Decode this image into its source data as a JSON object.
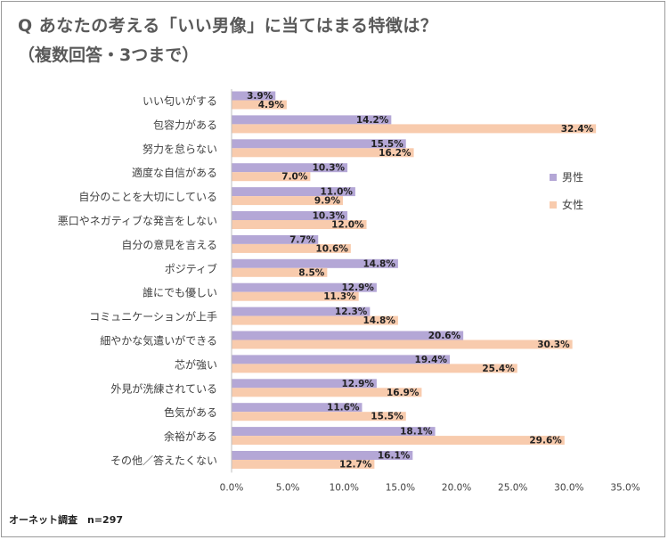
{
  "title": "Q あなたの考える「いい男像」に当てはまる特徴は？",
  "subtitle": "（複数回答・3つまで）",
  "footer": "オーネット調査　n=297",
  "colors": {
    "male": "#b4a7d6",
    "female": "#f8cbad",
    "axis": "#bfbfbf"
  },
  "chart_data": {
    "type": "bar",
    "orientation": "horizontal",
    "categories": [
      "いい匂いがする",
      "包容力がある",
      "努力を怠らない",
      "適度な自信がある",
      "自分のことを大切にしている",
      "悪口やネガティブな発言をしない",
      "自分の意見を言える",
      "ポジティブ",
      "誰にでも優しい",
      "コミュニケーションが上手",
      "細やかな気遣いができる",
      "芯が強い",
      "外見が洗練されている",
      "色気がある",
      "余裕がある",
      "その他／答えたくない"
    ],
    "series": [
      {
        "name": "男性",
        "values": [
          3.9,
          14.2,
          15.5,
          10.3,
          11.0,
          10.3,
          7.7,
          14.8,
          12.9,
          12.3,
          20.6,
          19.4,
          12.9,
          11.6,
          18.1,
          16.1
        ],
        "labels": [
          "3.9%",
          "14.2%",
          "15.5%",
          "10.3%",
          "11.0%",
          "10.3%",
          "7.7%",
          "14.8%",
          "12.9%",
          "12.3%",
          "20.6%",
          "19.4%",
          "12.9%",
          "11.6%",
          "18.1%",
          "16.1%"
        ]
      },
      {
        "name": "女性",
        "values": [
          4.9,
          32.4,
          16.2,
          7.0,
          9.9,
          12.0,
          10.6,
          8.5,
          11.3,
          14.8,
          30.3,
          25.4,
          16.9,
          15.5,
          29.6,
          12.7
        ],
        "labels": [
          "4.9%",
          "32.4%",
          "16.2%",
          "7.0%",
          "9.9%",
          "12.0%",
          "10.6%",
          "8.5%",
          "11.3%",
          "14.8%",
          "30.3%",
          "25.4%",
          "16.9%",
          "15.5%",
          "29.6%",
          "12.7%"
        ]
      }
    ],
    "xlim": [
      0,
      35
    ],
    "ticks": [
      0,
      5,
      10,
      15,
      20,
      25,
      30,
      35
    ],
    "tick_labels": [
      "0.0%",
      "5.0%",
      "10.0%",
      "15.0%",
      "20.0%",
      "25.0%",
      "30.0%",
      "35.0%"
    ],
    "legend_position": "right",
    "grid": false
  }
}
